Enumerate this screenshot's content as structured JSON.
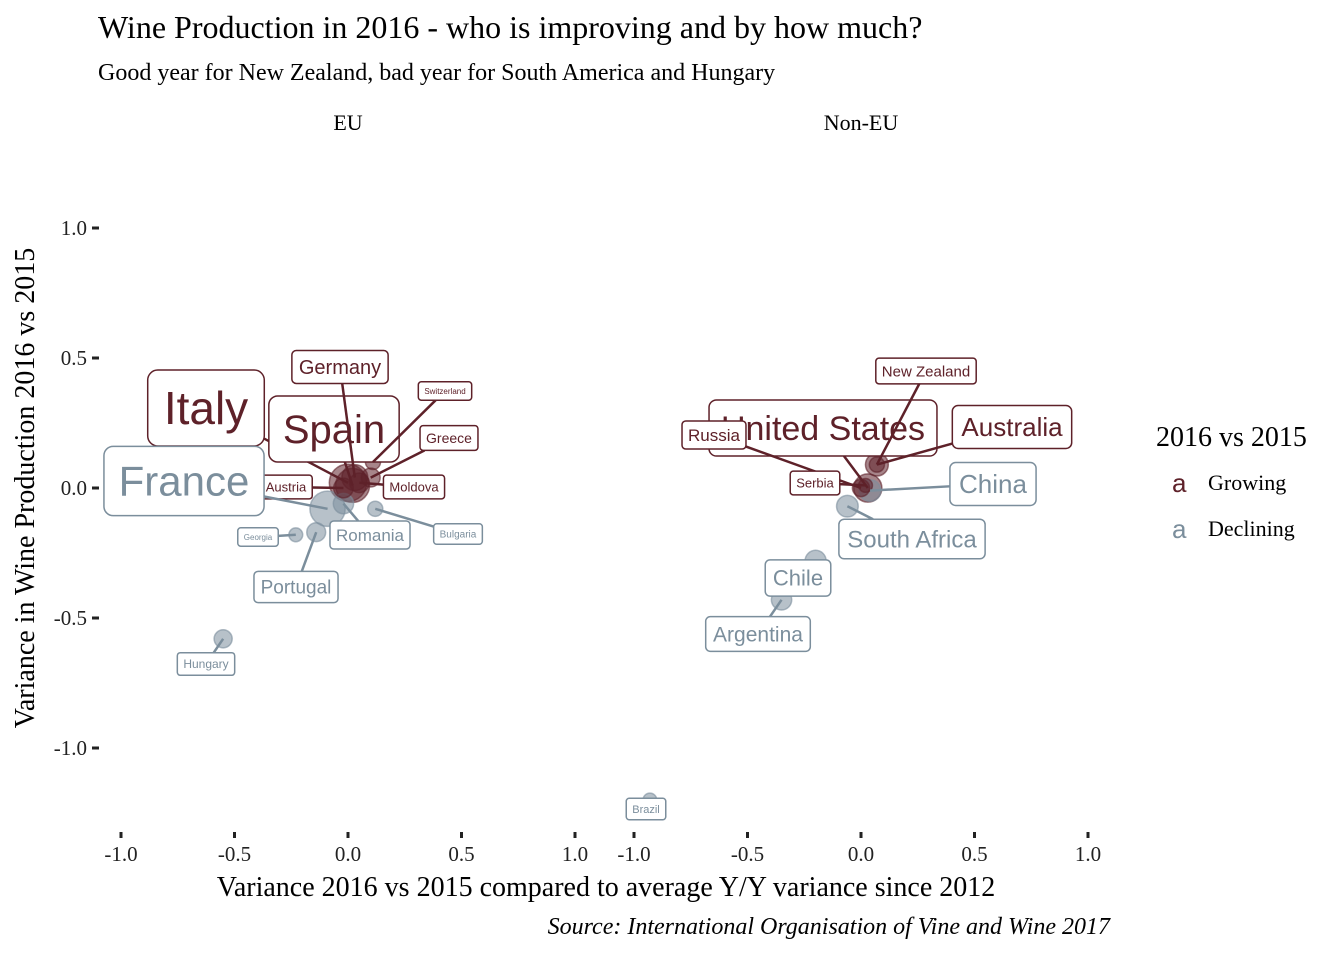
{
  "title": "Wine Production in 2016 - who is improving and by how much?",
  "subtitle": "Good year for New Zealand, bad year for South America and Hungary",
  "caption": "Source: International Organisation of Vine and Wine 2017",
  "colors": {
    "growing": "#5e2129",
    "declining": "#7b8e9c"
  },
  "chart_data": {
    "type": "scatter",
    "xlabel": "Variance 2016 vs 2015 compared to average Y/Y variance since 2012",
    "ylabel": "Variance in Wine Production 2016 vs 2015",
    "xlim": [
      -1.0,
      1.0
    ],
    "ylim": [
      -1.0,
      1.0
    ],
    "x_ticks": [
      "-1.0",
      "-0.5",
      "0.0",
      "0.5",
      "1.0"
    ],
    "y_ticks": [
      "1.0",
      "0.5",
      "0.0",
      "-0.5",
      "-1.0"
    ],
    "grid": false,
    "legend": {
      "title": "2016 vs 2015",
      "position": "right",
      "key_glyph": "a",
      "items": [
        {
          "label": "Growing",
          "color": "#5e2129"
        },
        {
          "label": "Declining",
          "color": "#7b8e9c"
        }
      ]
    },
    "panels": [
      {
        "name": "EU",
        "points": [
          {
            "label": "Italy",
            "x": 0.0,
            "y": 0.02,
            "status": "Growing",
            "size": 5.1
          },
          {
            "label": "Spain",
            "x": 0.02,
            "y": 0.01,
            "status": "Growing",
            "size": 4.0
          },
          {
            "label": "Germany",
            "x": 0.03,
            "y": 0.04,
            "status": "Growing",
            "size": 1.9
          },
          {
            "label": "Austria",
            "x": -0.02,
            "y": 0.0,
            "status": "Growing",
            "size": 0.8
          },
          {
            "label": "Moldova",
            "x": 0.05,
            "y": 0.02,
            "status": "Growing",
            "size": 0.8
          },
          {
            "label": "Greece",
            "x": 0.1,
            "y": 0.04,
            "status": "Growing",
            "size": 0.7
          },
          {
            "label": "Switzerland",
            "x": 0.11,
            "y": 0.1,
            "status": "Growing",
            "size": 0.3
          },
          {
            "label": "France",
            "x": -0.09,
            "y": -0.08,
            "status": "Declining",
            "size": 4.4
          },
          {
            "label": "Romania",
            "x": -0.02,
            "y": -0.06,
            "status": "Declining",
            "size": 0.9
          },
          {
            "label": "Portugal",
            "x": -0.14,
            "y": -0.17,
            "status": "Declining",
            "size": 0.7
          },
          {
            "label": "Georgia",
            "x": -0.23,
            "y": -0.18,
            "status": "Declining",
            "size": 0.2
          },
          {
            "label": "Bulgaria",
            "x": 0.12,
            "y": -0.08,
            "status": "Declining",
            "size": 0.3
          },
          {
            "label": "Hungary",
            "x": -0.55,
            "y": -0.58,
            "status": "Declining",
            "size": 0.6
          }
        ]
      },
      {
        "name": "Non-EU",
        "points": [
          {
            "label": "United States",
            "x": 0.03,
            "y": 0.0,
            "status": "Growing",
            "size": 2.4
          },
          {
            "label": "Australia",
            "x": 0.07,
            "y": 0.09,
            "status": "Growing",
            "size": 1.3
          },
          {
            "label": "New Zealand",
            "x": 0.07,
            "y": 0.09,
            "status": "Growing",
            "size": 0.3
          },
          {
            "label": "Russia",
            "x": 0.0,
            "y": 0.0,
            "status": "Growing",
            "size": 0.5
          },
          {
            "label": "Serbia",
            "x": 0.02,
            "y": 0.01,
            "status": "Growing",
            "size": 0.2
          },
          {
            "label": "China",
            "x": 0.04,
            "y": -0.01,
            "status": "Declining",
            "size": 1.1
          },
          {
            "label": "South Africa",
            "x": -0.06,
            "y": -0.07,
            "status": "Declining",
            "size": 1.1
          },
          {
            "label": "Chile",
            "x": -0.2,
            "y": -0.28,
            "status": "Declining",
            "size": 1.0
          },
          {
            "label": "Argentina",
            "x": -0.35,
            "y": -0.43,
            "status": "Declining",
            "size": 0.9
          },
          {
            "label": "Brazil",
            "x": -0.93,
            "y": -1.2,
            "status": "Declining",
            "size": 0.2
          }
        ]
      }
    ]
  }
}
